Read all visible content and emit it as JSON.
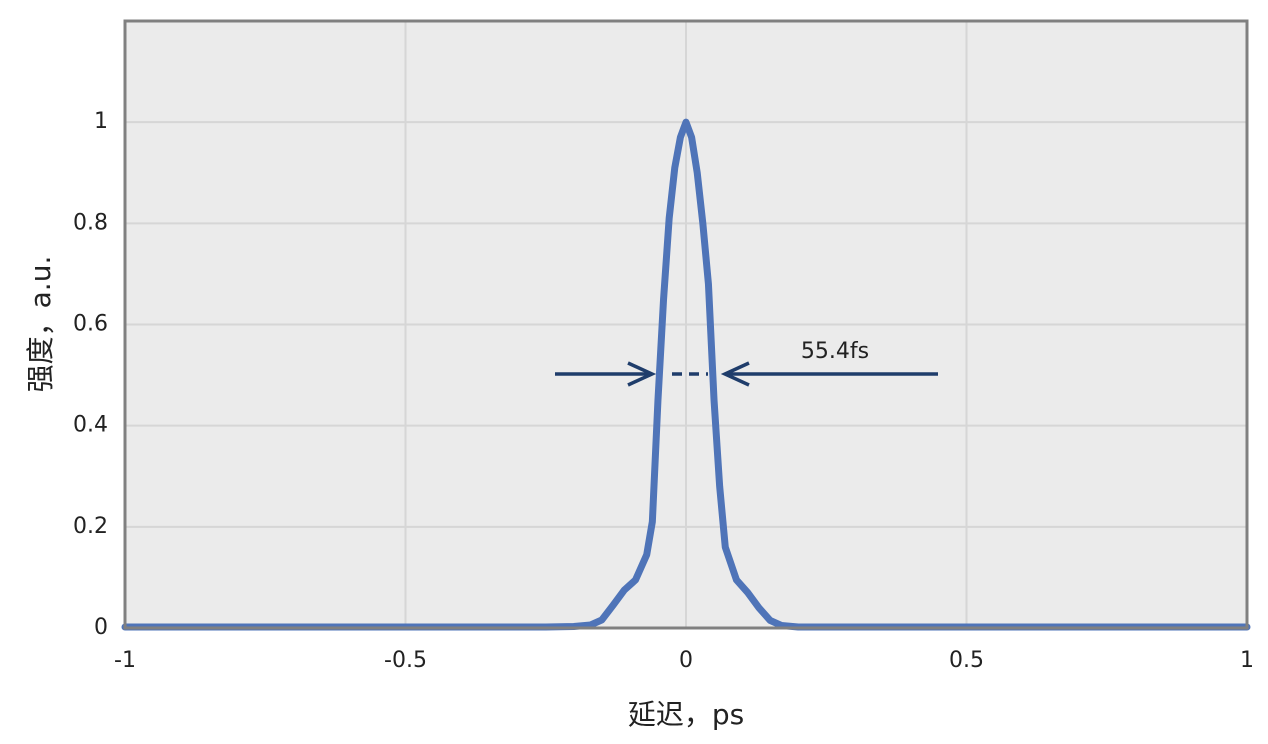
{
  "chart_data": {
    "type": "line",
    "x_label": "延迟，ps",
    "y_label": "强度，a.u.",
    "annotation": "55.4fs",
    "x": [
      -1,
      -0.5,
      -0.25,
      -0.2,
      -0.17,
      -0.15,
      -0.13,
      -0.11,
      -0.09,
      -0.07,
      -0.06,
      -0.05,
      -0.04,
      -0.03,
      -0.02,
      -0.01,
      0,
      0.01,
      0.02,
      0.03,
      0.04,
      0.05,
      0.06,
      0.07,
      0.09,
      0.11,
      0.13,
      0.15,
      0.17,
      0.2,
      0.25,
      0.5,
      1
    ],
    "values": [
      0.002,
      0.002,
      0.002,
      0.003,
      0.006,
      0.016,
      0.045,
      0.075,
      0.095,
      0.145,
      0.21,
      0.45,
      0.65,
      0.81,
      0.91,
      0.97,
      1,
      0.97,
      0.9,
      0.8,
      0.68,
      0.45,
      0.28,
      0.16,
      0.095,
      0.07,
      0.04,
      0.015,
      0.005,
      0.002,
      0.002,
      0.002,
      0.002
    ],
    "color": "#4f74b8",
    "xlim": [
      -1,
      1
    ],
    "xticks": [
      -1,
      -0.5,
      0,
      0.5,
      1
    ],
    "ylim": [
      0,
      1.2
    ],
    "yticks": [
      0,
      0.2,
      0.4,
      0.6,
      0.8,
      1
    ],
    "grid": true
  }
}
